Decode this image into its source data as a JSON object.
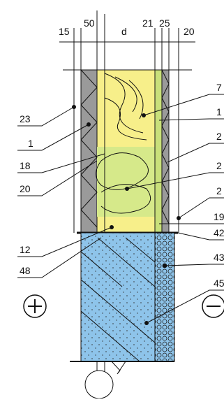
{
  "dimensions": [
    "15",
    "50",
    "d",
    "21",
    "25",
    "20"
  ],
  "left_labels": [
    "23",
    "1",
    "18",
    "20",
    "12",
    "48"
  ],
  "right_labels": [
    "7",
    "1",
    "2",
    "2",
    "2",
    "19",
    "42",
    "43",
    "45"
  ]
}
